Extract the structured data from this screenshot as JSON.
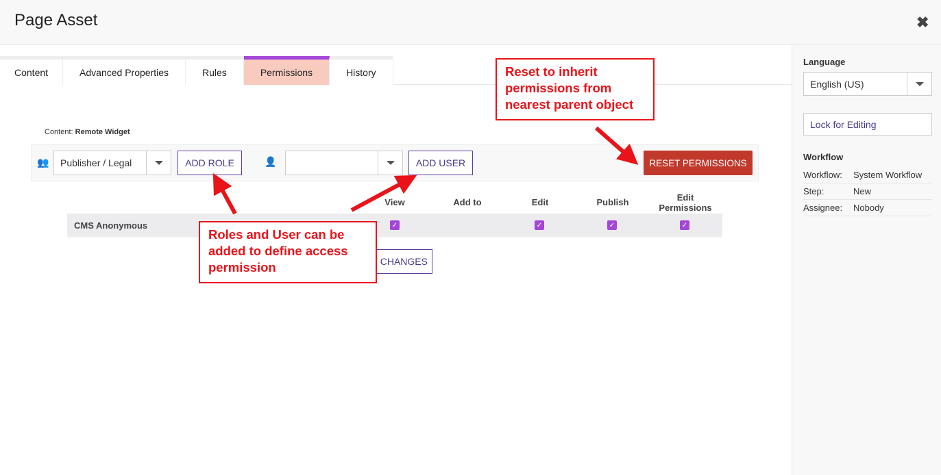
{
  "header": {
    "title": "Page Asset",
    "close_icon": "close-icon"
  },
  "tabs": [
    {
      "label": "Content"
    },
    {
      "label": "Advanced Properties"
    },
    {
      "label": "Rules"
    },
    {
      "label": "Permissions",
      "active": true
    },
    {
      "label": "History"
    }
  ],
  "content": {
    "label": "Content:",
    "name": "Remote Widget"
  },
  "toolbar": {
    "role_value": "Publisher / Legal",
    "add_role": "ADD ROLE",
    "user_value": "",
    "add_user": "ADD USER",
    "reset": "RESET PERMISSIONS"
  },
  "permissions": {
    "columns": [
      "View",
      "Add to",
      "Edit",
      "Publish",
      "Edit Permissions"
    ],
    "rows": [
      {
        "name": "CMS Anonymous",
        "view": true,
        "add_to": false,
        "edit": true,
        "publish": true,
        "edit_permissions": true
      }
    ]
  },
  "apply_label": "APPLY CHANGES",
  "sidebar": {
    "language_label": "Language",
    "language_value": "English (US)",
    "lock": "Lock for Editing",
    "workflow_title": "Workflow",
    "workflow": [
      {
        "k": "Workflow:",
        "v": "System Workflow"
      },
      {
        "k": "Step:",
        "v": "New"
      },
      {
        "k": "Assignee:",
        "v": "Nobody"
      }
    ]
  },
  "annotations": {
    "reset": [
      "Reset to inherit",
      "permissions from",
      "nearest parent object"
    ],
    "roles": [
      "Roles and User can be",
      "added to define access",
      "permission"
    ]
  },
  "colors": {
    "accent": "#a446d8",
    "active_tab": "#f9cbbf",
    "reset_button": "#c0392b",
    "annotation": "#e8141a"
  }
}
